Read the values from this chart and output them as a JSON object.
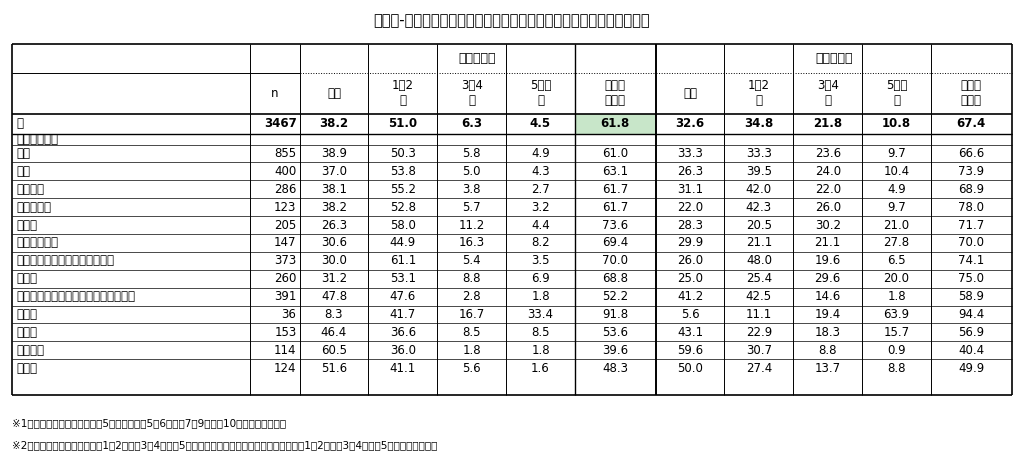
{
  "title": "図表６-７：主たる勤務先の日直・宿直の月当たりの回数（単位＝％）",
  "header1_nicchoku": "日直の回数",
  "header1_shukuchoku": "宿直の回数",
  "col_labels": [
    "",
    "n",
    "なし",
    "1～2\n回",
    "3～4\n回",
    "5回以\n上",
    "日直あ\nり・計",
    "なし",
    "1～2\n回",
    "3～4\n回",
    "5回以\n上",
    "宿直あ\nり・計"
  ],
  "rows": [
    [
      "計",
      "3467",
      "38.2",
      "51.0",
      "6.3",
      "4.5",
      "61.8",
      "32.6",
      "34.8",
      "21.8",
      "10.8",
      "67.4"
    ],
    [
      "＜診療科別＞",
      "",
      "",
      "",
      "",
      "",
      "",
      "",
      "",
      "",
      "",
      ""
    ],
    [
      "内科",
      "855",
      "38.9",
      "50.3",
      "5.8",
      "4.9",
      "61.0",
      "33.3",
      "33.3",
      "23.6",
      "9.7",
      "66.6"
    ],
    [
      "外科",
      "400",
      "37.0",
      "53.8",
      "5.0",
      "4.3",
      "63.1",
      "26.3",
      "39.5",
      "24.0",
      "10.4",
      "73.9"
    ],
    [
      "整形外科",
      "286",
      "38.1",
      "55.2",
      "3.8",
      "2.7",
      "61.7",
      "31.1",
      "42.0",
      "22.0",
      "4.9",
      "68.9"
    ],
    [
      "脳神経外科",
      "123",
      "38.2",
      "52.8",
      "5.7",
      "3.2",
      "61.7",
      "22.0",
      "42.3",
      "26.0",
      "9.7",
      "78.0"
    ],
    [
      "小児科",
      "205",
      "26.3",
      "58.0",
      "11.2",
      "4.4",
      "73.6",
      "28.3",
      "20.5",
      "30.2",
      "21.0",
      "71.7"
    ],
    [
      "産科・婦人科",
      "147",
      "30.6",
      "44.9",
      "16.3",
      "8.2",
      "69.4",
      "29.9",
      "21.1",
      "21.1",
      "27.8",
      "70.0"
    ],
    [
      "呼吸器科・消化器科・循環器科",
      "373",
      "30.0",
      "61.1",
      "5.4",
      "3.5",
      "70.0",
      "26.0",
      "48.0",
      "19.6",
      "6.5",
      "74.1"
    ],
    [
      "精神科",
      "260",
      "31.2",
      "53.1",
      "8.8",
      "6.9",
      "68.8",
      "25.0",
      "25.4",
      "29.6",
      "20.0",
      "75.0"
    ],
    [
      "眼科・耳鼻咽喉科・泌尿器科・皮膚科",
      "391",
      "47.8",
      "47.6",
      "2.8",
      "1.8",
      "52.2",
      "41.2",
      "42.5",
      "14.6",
      "1.8",
      "58.9"
    ],
    [
      "救急科",
      "36",
      "8.3",
      "41.7",
      "16.7",
      "33.4",
      "91.8",
      "5.6",
      "11.1",
      "19.4",
      "63.9",
      "94.4"
    ],
    [
      "麻酔科",
      "153",
      "46.4",
      "36.6",
      "8.5",
      "8.5",
      "53.6",
      "43.1",
      "22.9",
      "18.3",
      "15.7",
      "56.9"
    ],
    [
      "放射線科",
      "114",
      "60.5",
      "36.0",
      "1.8",
      "1.8",
      "39.6",
      "59.6",
      "30.7",
      "8.8",
      "0.9",
      "40.4"
    ],
    [
      "その他",
      "124",
      "51.6",
      "41.1",
      "5.6",
      "1.6",
      "48.3",
      "50.0",
      "27.4",
      "13.7",
      "8.8",
      "49.9"
    ]
  ],
  "footnotes": [
    "※1：日直及び宿直の回数の「5回以上」は「5～6回」「7～9回」「10回以上」の合計。",
    "※2：「日直あり・計」は、「1～2回」「3～4回」「5回以上」の合計。「宿直あり・計」は、「1～2回」「3～4回」「5回以上」の合計。"
  ],
  "highlight_col_idx": 6,
  "highlight_color": "#c8e6c9",
  "title_fontsize": 10.5,
  "cell_fontsize": 8.5,
  "header_fontsize": 9.0,
  "footnote_fontsize": 7.5
}
